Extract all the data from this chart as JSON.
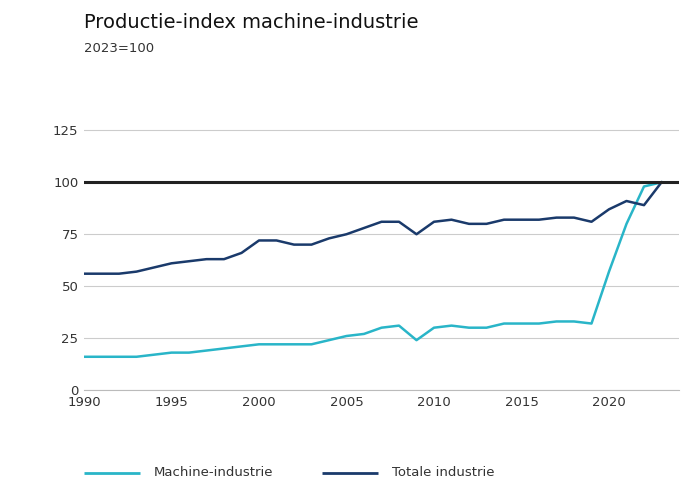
{
  "title": "Productie-index machine-industrie",
  "subtitle": "2023=100",
  "xlim": [
    1990,
    2024
  ],
  "ylim": [
    0,
    130
  ],
  "yticks": [
    0,
    25,
    50,
    75,
    100,
    125
  ],
  "xticks": [
    1990,
    1995,
    2000,
    2005,
    2010,
    2015,
    2020
  ],
  "machine_industrie_color": "#29b5c8",
  "totale_industrie_color": "#1a3a6b",
  "reference_line_color": "#222222",
  "reference_line_value": 100,
  "background_color": "#ffffff",
  "plot_bg_color": "#ffffff",
  "gray_area_color": "#e8e8e8",
  "grid_color": "#cccccc",
  "machine_industrie": {
    "years": [
      1990,
      1991,
      1992,
      1993,
      1994,
      1995,
      1996,
      1997,
      1998,
      1999,
      2000,
      2001,
      2002,
      2003,
      2004,
      2005,
      2006,
      2007,
      2008,
      2009,
      2010,
      2011,
      2012,
      2013,
      2014,
      2015,
      2016,
      2017,
      2018,
      2019,
      2020,
      2021,
      2022,
      2023
    ],
    "values": [
      16,
      16,
      16,
      16,
      17,
      18,
      18,
      19,
      20,
      21,
      22,
      22,
      22,
      22,
      24,
      26,
      27,
      30,
      31,
      24,
      30,
      31,
      30,
      30,
      32,
      32,
      32,
      33,
      33,
      32,
      57,
      80,
      98,
      100
    ]
  },
  "totale_industrie": {
    "years": [
      1990,
      1991,
      1992,
      1993,
      1994,
      1995,
      1996,
      1997,
      1998,
      1999,
      2000,
      2001,
      2002,
      2003,
      2004,
      2005,
      2006,
      2007,
      2008,
      2009,
      2010,
      2011,
      2012,
      2013,
      2014,
      2015,
      2016,
      2017,
      2018,
      2019,
      2020,
      2021,
      2022,
      2023
    ],
    "values": [
      56,
      56,
      56,
      57,
      59,
      61,
      62,
      63,
      63,
      66,
      72,
      72,
      70,
      70,
      73,
      75,
      78,
      81,
      81,
      75,
      81,
      82,
      80,
      80,
      82,
      82,
      82,
      83,
      83,
      81,
      87,
      91,
      89,
      100
    ]
  },
  "legend": {
    "machine_label": "Machine-industrie",
    "totale_label": "Totale industrie"
  }
}
